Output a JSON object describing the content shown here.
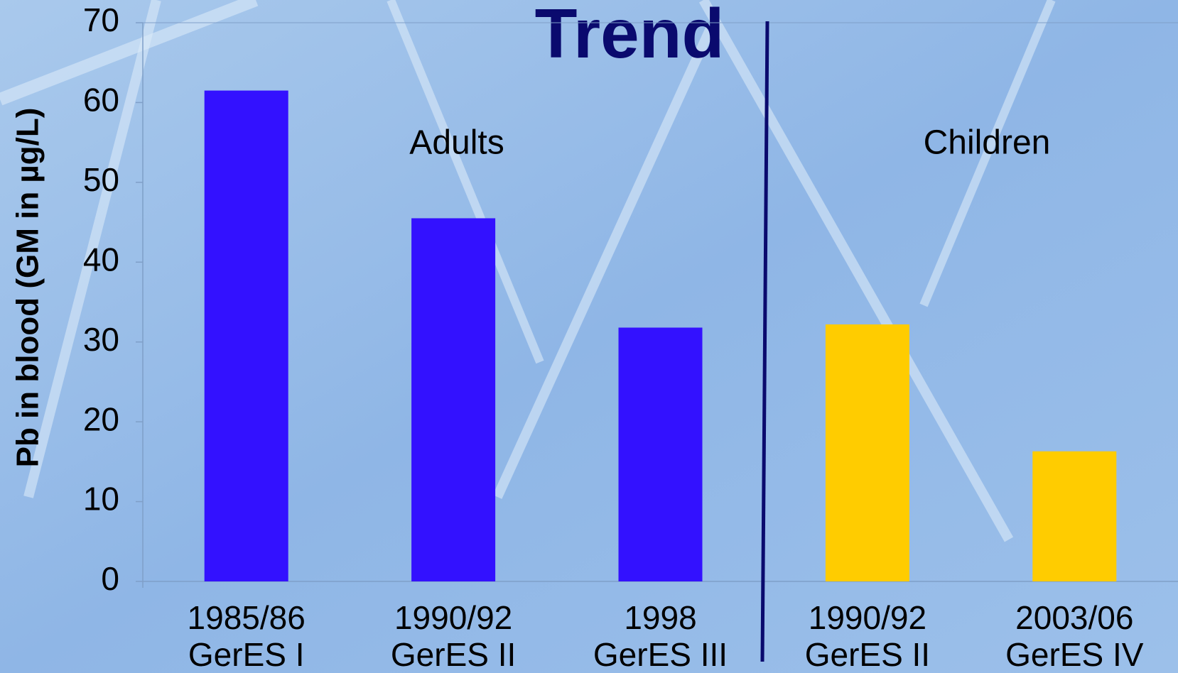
{
  "chart_data": {
    "type": "bar",
    "title": "Trend",
    "y_label": "Pb in blood (GM in µg/L)",
    "categories": [
      [
        "1985/86",
        "GerES I"
      ],
      [
        "1990/92",
        "GerES II"
      ],
      [
        "1998",
        "GerES III"
      ],
      [
        "1990/92",
        "GerES II"
      ],
      [
        "2003/06",
        "GerES IV"
      ]
    ],
    "values": [
      61.5,
      45.5,
      31.8,
      32.2,
      16.3
    ],
    "colors": [
      "#3311ff",
      "#3311ff",
      "#3311ff",
      "#ffcc00",
      "#ffcc00"
    ],
    "annotations": [
      "Adults",
      "Children"
    ],
    "ylim": [
      0,
      70
    ],
    "yticks": [
      0,
      10,
      20,
      30,
      40,
      50,
      60,
      70
    ],
    "grid": false
  }
}
